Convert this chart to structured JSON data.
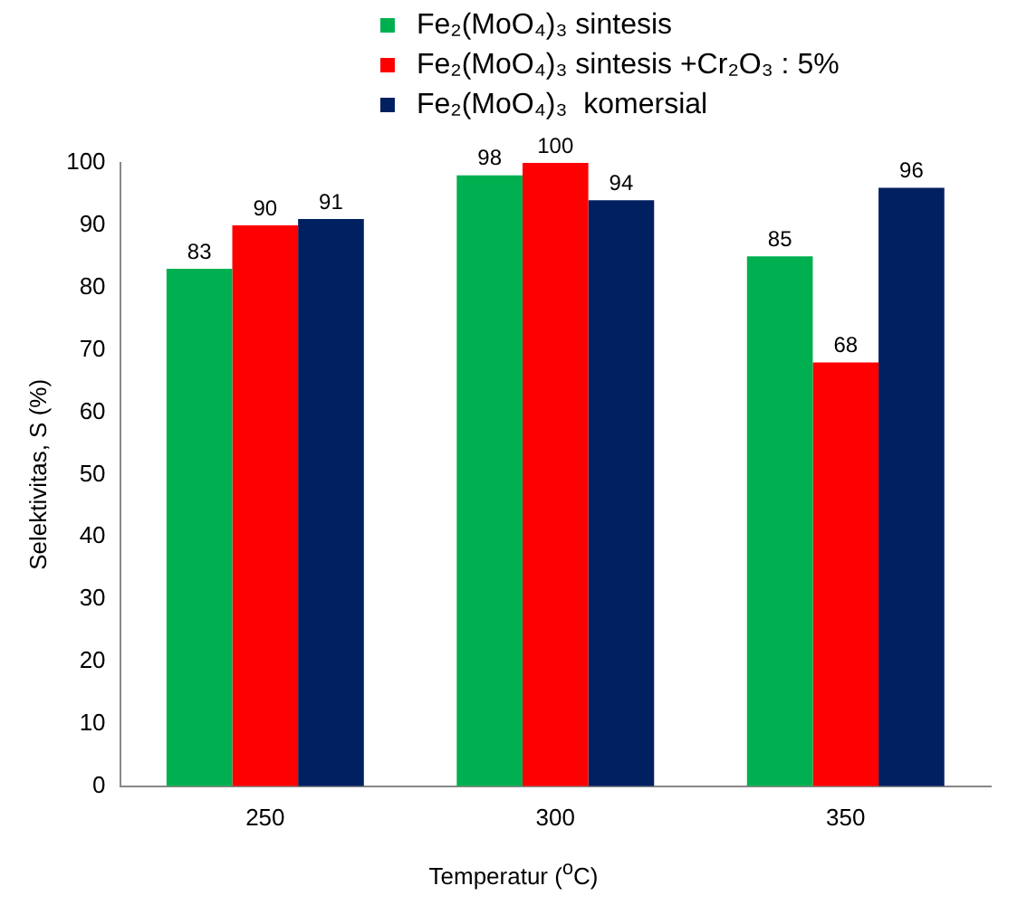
{
  "chart_data": {
    "type": "bar",
    "xlabel": "Temperatur ($^{o}$C)",
    "ylabel": "Selektivitas, S (%)",
    "categories": [
      "250",
      "300",
      "350"
    ],
    "series": [
      {
        "name": "Fe₂(MoO₄)₃ sintesis",
        "color": "#00b050",
        "values": [
          83,
          98,
          85
        ]
      },
      {
        "name": "Fe₂(MoO₄)₃ sintesis +Cr₂O₃ : 5%",
        "color": "#ff0000",
        "values": [
          90,
          100,
          68
        ]
      },
      {
        "name": "Fe₂(MoO₄)₃  komersial",
        "color": "#002060",
        "values": [
          91,
          94,
          96
        ]
      }
    ],
    "ylim": [
      0,
      100
    ],
    "yticks": [
      0,
      10,
      20,
      30,
      40,
      50,
      60,
      70,
      80,
      90,
      100
    ],
    "grid": false,
    "legend": "top",
    "data_labels": true
  }
}
